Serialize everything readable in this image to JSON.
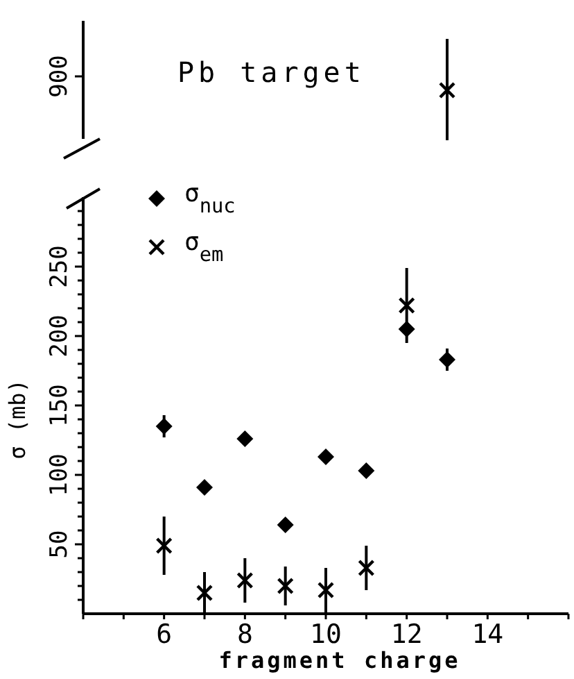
{
  "chart_data": [
    {
      "type": "other",
      "annotations": [
        "Pb target",
        "900"
      ]
    },
    {
      "type": "scatter",
      "xlabel": "fragment charge",
      "ylabel": "σ (mb)",
      "xlim": [
        4,
        16
      ],
      "ylim": [
        0,
        300
      ],
      "xticks": [
        {
          "value": 4,
          "label": null
        },
        {
          "value": 5,
          "label": null
        },
        6,
        {
          "value": 7,
          "label": null
        },
        8,
        {
          "value": 9,
          "label": null
        },
        10,
        {
          "value": 11,
          "label": null
        },
        12,
        {
          "value": 13,
          "label": null
        },
        14,
        {
          "value": 15,
          "label": null
        },
        {
          "value": 16,
          "label": null
        }
      ],
      "yticks": [
        {
          "value": 10,
          "label": null
        },
        {
          "value": 20,
          "label": null
        },
        {
          "value": 30,
          "label": null
        },
        {
          "value": 40,
          "label": null
        },
        50,
        {
          "value": 60,
          "label": null
        },
        {
          "value": 70,
          "label": null
        },
        {
          "value": 80,
          "label": null
        },
        {
          "value": 90,
          "label": null
        },
        100,
        {
          "value": 110,
          "label": null
        },
        {
          "value": 120,
          "label": null
        },
        {
          "value": 130,
          "label": null
        },
        {
          "value": 140,
          "label": null
        },
        150,
        {
          "value": 160,
          "label": null
        },
        {
          "value": 170,
          "label": null
        },
        {
          "value": 180,
          "label": null
        },
        {
          "value": 190,
          "label": null
        },
        200,
        {
          "value": 210,
          "label": null
        },
        {
          "value": 220,
          "label": null
        },
        {
          "value": 230,
          "label": null
        },
        {
          "value": 240,
          "label": null
        },
        250,
        {
          "value": 260,
          "label": null
        },
        {
          "value": 270,
          "label": null
        },
        {
          "value": 280,
          "label": null
        },
        {
          "value": 290,
          "label": null
        }
      ],
      "legend": "top left",
      "series": [
        {
          "name": "σ$_{nuc}$",
          "color": "#000000",
          "marker": "diamond",
          "x": [
            6,
            7,
            8,
            9,
            10,
            11,
            12,
            13
          ],
          "values": [
            135,
            91,
            126,
            64,
            113,
            103,
            205,
            183
          ],
          "errors": [
            8,
            null,
            null,
            null,
            null,
            null,
            null,
            8
          ]
        },
        {
          "name": "σ$_{em}$",
          "color": "#000000",
          "marker": "cross",
          "x": [
            6,
            7,
            8,
            9,
            10,
            11,
            12
          ],
          "values": [
            49,
            15,
            24,
            20,
            17,
            33,
            222
          ],
          "errors": [
            21,
            15,
            16,
            14,
            16,
            16,
            27
          ]
        }
      ]
    }
  ]
}
